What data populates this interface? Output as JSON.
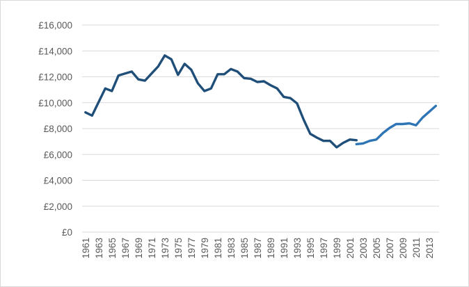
{
  "chart_data": {
    "type": "line",
    "title": "",
    "xlabel": "",
    "ylabel": "",
    "ylim": [
      0,
      16000
    ],
    "y_ticks": [
      0,
      2000,
      4000,
      6000,
      8000,
      10000,
      12000,
      14000,
      16000
    ],
    "y_tick_labels": [
      "£0",
      "£2,000",
      "£4,000",
      "£6,000",
      "£8,000",
      "£10,000",
      "£12,000",
      "£14,000",
      "£16,000"
    ],
    "x_tick_labels": [
      "1961",
      "1963",
      "1965",
      "1967",
      "1969",
      "1971",
      "1973",
      "1975",
      "1977",
      "1979",
      "1981",
      "1983",
      "1985",
      "1987",
      "1989",
      "1991",
      "1993",
      "1995",
      "1997",
      "1999",
      "2001",
      "2003",
      "2005",
      "2007",
      "2009",
      "2011",
      "2013"
    ],
    "grid": "horizontal",
    "legend": "none",
    "series": [
      {
        "color": "#1f4e79",
        "x": [
          1961,
          1962,
          1963,
          1964,
          1965,
          1966,
          1967,
          1968,
          1969,
          1970,
          1971,
          1972,
          1973,
          1974,
          1975,
          1976,
          1977,
          1978,
          1979,
          1980,
          1981,
          1982,
          1983,
          1984,
          1985,
          1986,
          1987,
          1988,
          1989,
          1990,
          1991,
          1992,
          1993,
          1994,
          1995,
          1996,
          1997,
          1998,
          1999,
          2000,
          2001,
          2002
        ],
        "values": [
          9250,
          9000,
          10050,
          11100,
          10900,
          12100,
          12250,
          12400,
          11800,
          11700,
          12250,
          12800,
          13650,
          13350,
          12150,
          13000,
          12550,
          11500,
          10900,
          11100,
          12200,
          12200,
          12600,
          12400,
          11900,
          11850,
          11600,
          11650,
          11350,
          11100,
          10450,
          10350,
          9950,
          8700,
          7600,
          7300,
          7050,
          7050,
          6550,
          6900,
          7150,
          7100
        ]
      },
      {
        "color": "#2e75b6",
        "x": [
          2002,
          2003,
          2004,
          2005,
          2006,
          2007,
          2008,
          2009,
          2010,
          2011,
          2012,
          2013,
          2014
        ],
        "values": [
          6800,
          6850,
          7050,
          7150,
          7650,
          8050,
          8350,
          8350,
          8400,
          8250,
          8850,
          9300,
          9750
        ]
      }
    ]
  }
}
